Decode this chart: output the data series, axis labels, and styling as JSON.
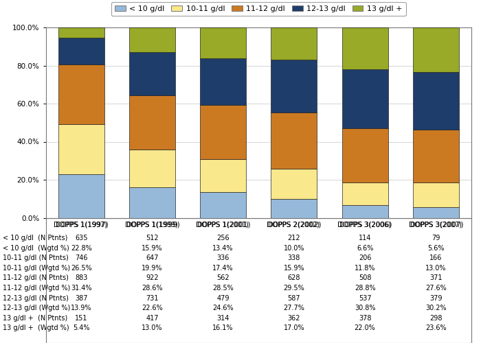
{
  "categories": [
    "DOPPS 1(1997)",
    "DOPPS 1(1999)",
    "DOPPS 1(2001)",
    "DOPPS 2(2002)",
    "DOPPS 3(2006)",
    "DOPPS 3(2007)"
  ],
  "series": [
    {
      "label": "< 10 g/dl",
      "color": "#97b9d9",
      "values": [
        22.8,
        15.9,
        13.4,
        10.0,
        6.6,
        5.6
      ]
    },
    {
      "label": "10-11 g/dl",
      "color": "#fae88c",
      "values": [
        26.5,
        19.9,
        17.4,
        15.9,
        11.8,
        13.0
      ]
    },
    {
      "label": "11-12 g/dl",
      "color": "#cc7a22",
      "values": [
        31.4,
        28.6,
        28.5,
        29.5,
        28.8,
        27.6
      ]
    },
    {
      "label": "12-13 g/dl",
      "color": "#1e3d6b",
      "values": [
        13.9,
        22.6,
        24.6,
        27.7,
        30.8,
        30.2
      ]
    },
    {
      "label": "13 g/dl +",
      "color": "#98aa28",
      "values": [
        5.4,
        13.0,
        16.1,
        17.0,
        22.0,
        23.6
      ]
    }
  ],
  "table_rows": [
    {
      "label": "< 10 g/dl  (N Ptnts)",
      "values": [
        "635",
        "512",
        "256",
        "212",
        "114",
        "79"
      ]
    },
    {
      "label": "< 10 g/dl  (Wgtd %)",
      "values": [
        "22.8%",
        "15.9%",
        "13.4%",
        "10.0%",
        "6.6%",
        "5.6%"
      ]
    },
    {
      "label": "10-11 g/dl (N Ptnts)",
      "values": [
        "746",
        "647",
        "336",
        "338",
        "206",
        "166"
      ]
    },
    {
      "label": "10-11 g/dl (Wgtd %)",
      "values": [
        "26.5%",
        "19.9%",
        "17.4%",
        "15.9%",
        "11.8%",
        "13.0%"
      ]
    },
    {
      "label": "11-12 g/dl (N Ptnts)",
      "values": [
        "883",
        "922",
        "562",
        "628",
        "508",
        "371"
      ]
    },
    {
      "label": "11-12 g/dl (Wgtd %)",
      "values": [
        "31.4%",
        "28.6%",
        "28.5%",
        "29.5%",
        "28.8%",
        "27.6%"
      ]
    },
    {
      "label": "12-13 g/dl (N Ptnts)",
      "values": [
        "387",
        "731",
        "479",
        "587",
        "537",
        "379"
      ]
    },
    {
      "label": "12-13 g/dl (Wgtd %)",
      "values": [
        "13.9%",
        "22.6%",
        "24.6%",
        "27.7%",
        "30.8%",
        "30.2%"
      ]
    },
    {
      "label": "13 g/dl +  (N Ptnts)",
      "values": [
        "151",
        "417",
        "314",
        "362",
        "378",
        "298"
      ]
    },
    {
      "label": "13 g/dl +  (Wgtd %)",
      "values": [
        "5.4%",
        "13.0%",
        "16.1%",
        "17.0%",
        "22.0%",
        "23.6%"
      ]
    }
  ],
  "ylim": [
    0,
    100
  ],
  "yticks": [
    0,
    20,
    40,
    60,
    80,
    100
  ],
  "ytick_labels": [
    "0.0%",
    "20.0%",
    "40.0%",
    "60.0%",
    "80.0%",
    "100.0%"
  ],
  "background_color": "#ffffff",
  "bar_edge_color": "#222222",
  "grid_color": "#d0d0d0",
  "axis_fontsize": 7.5,
  "table_fontsize": 7.0,
  "legend_fontsize": 8.0
}
